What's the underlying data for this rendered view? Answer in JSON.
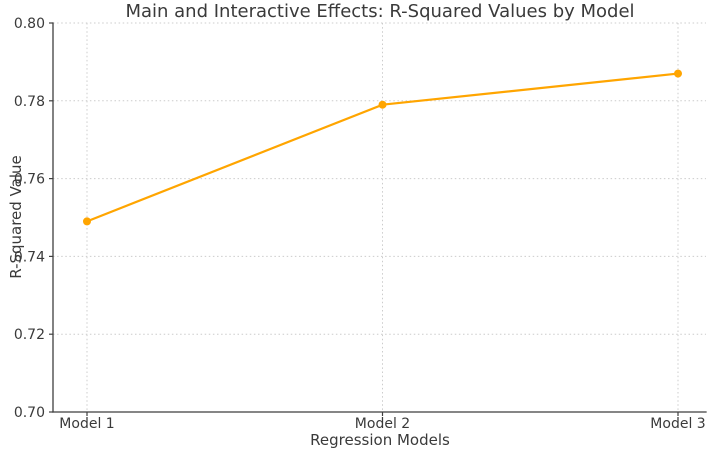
{
  "chart_data": {
    "type": "line",
    "title": "Main and Interactive Effects: R-Squared Values by Model",
    "xlabel": "Regression Models",
    "ylabel": "R-Squared Value",
    "categories": [
      "Model 1",
      "Model 2",
      "Model 3"
    ],
    "series": [
      {
        "name": "R-Squared Value",
        "values": [
          0.749,
          0.779,
          0.787
        ],
        "color": "#FFA500",
        "marker": "circle"
      }
    ],
    "ylim": [
      0.7,
      0.8
    ],
    "yticks": [
      0.7,
      0.72,
      0.74,
      0.76,
      0.78,
      0.8
    ],
    "ytick_labels": [
      "0.70",
      "0.72",
      "0.74",
      "0.76",
      "0.78",
      "0.80"
    ],
    "grid": {
      "visible": true,
      "style": "dotted",
      "color": "#cccccc"
    },
    "legend_position": "none",
    "axis_color": "#3f3f3f",
    "text_color": "#3a3a3a",
    "background_color": "#ffffff"
  }
}
